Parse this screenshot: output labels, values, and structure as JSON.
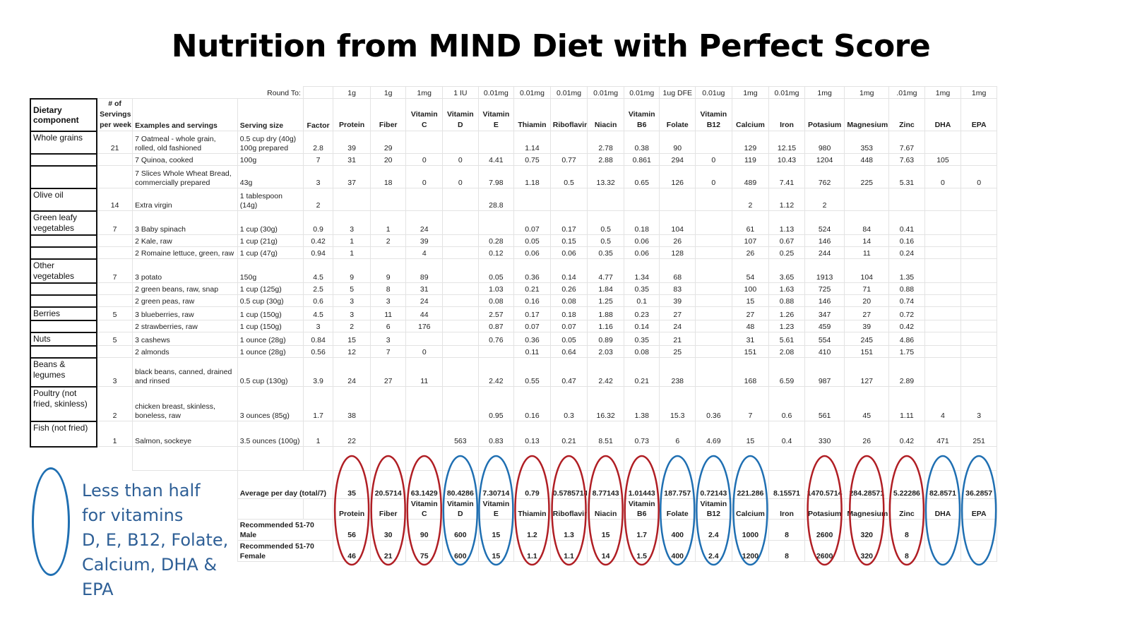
{
  "title": "Nutrition from MIND Diet with Perfect Score",
  "round_to": {
    "label": "Round To:",
    "values": [
      "1g",
      "1g",
      "1mg",
      "1 IU",
      "0.01mg",
      "0.01mg",
      "0.01mg",
      "0.01mg",
      "0.01mg",
      "1ug DFE",
      "0.01ug",
      "1mg",
      "0.01mg",
      "1mg",
      "1mg",
      ".01mg",
      "1mg",
      "1mg"
    ]
  },
  "headers": {
    "component": "Dietary component",
    "servings_top": "# of",
    "servings_mid": "Servings",
    "servings_bottom": "per week",
    "examples": "Examples and servings",
    "serving_size": "Serving size",
    "factor": "Factor",
    "nutrients": [
      {
        "top": "",
        "bottom": "Protein"
      },
      {
        "top": "",
        "bottom": "Fiber"
      },
      {
        "top": "Vitamin",
        "bottom": "C"
      },
      {
        "top": "Vitamin",
        "bottom": "D"
      },
      {
        "top": "Vitamin",
        "bottom": "E"
      },
      {
        "top": "",
        "bottom": "Thiamin"
      },
      {
        "top": "",
        "bottom": "Riboflavin"
      },
      {
        "top": "",
        "bottom": "Niacin"
      },
      {
        "top": "Vitamin",
        "bottom": "B6"
      },
      {
        "top": "",
        "bottom": "Folate"
      },
      {
        "top": "Vitamin",
        "bottom": "B12"
      },
      {
        "top": "",
        "bottom": "Calcium"
      },
      {
        "top": "",
        "bottom": "Iron"
      },
      {
        "top": "",
        "bottom": "Potasium"
      },
      {
        "top": "",
        "bottom": "Magnesium"
      },
      {
        "top": "",
        "bottom": "Zinc"
      },
      {
        "top": "",
        "bottom": "DHA"
      },
      {
        "top": "",
        "bottom": "EPA"
      }
    ]
  },
  "rows": [
    {
      "component": "Whole grains",
      "servings": "21",
      "example": "7 Oatmeal - whole grain, rolled, old fashioned",
      "size": "0.5 cup dry (40g) 100g prepared",
      "factor": "2.8",
      "values": [
        "39",
        "29",
        "",
        "",
        "",
        "1.14",
        "",
        "2.78",
        "0.38",
        "90",
        "",
        "129",
        "12.15",
        "980",
        "353",
        "7.67",
        "",
        ""
      ]
    },
    {
      "component": "",
      "servings": "",
      "example": "7 Quinoa, cooked",
      "size": "100g",
      "factor": "7",
      "values": [
        "31",
        "20",
        "0",
        "0",
        "4.41",
        "0.75",
        "0.77",
        "2.88",
        "0.861",
        "294",
        "0",
        "119",
        "10.43",
        "1204",
        "448",
        "7.63",
        "105",
        ""
      ]
    },
    {
      "component": "",
      "servings": "",
      "example": "7 Slices Whole Wheat Bread, commercially prepared",
      "size": "43g",
      "factor": "3",
      "values": [
        "37",
        "18",
        "0",
        "0",
        "7.98",
        "1.18",
        "0.5",
        "13.32",
        "0.65",
        "126",
        "0",
        "489",
        "7.41",
        "762",
        "225",
        "5.31",
        "0",
        "0"
      ]
    },
    {
      "component": "Olive oil",
      "servings": "14",
      "example": "Extra virgin",
      "size": "1 tablespoon (14g)",
      "factor": "2",
      "values": [
        "",
        "",
        "",
        "",
        "28.8",
        "",
        "",
        "",
        "",
        "",
        "",
        "2",
        "1.12",
        "2",
        "",
        "",
        "",
        ""
      ]
    },
    {
      "component": "Green leafy vegetables",
      "servings": "7",
      "example": "3 Baby spinach",
      "size": "1 cup (30g)",
      "factor": "0.9",
      "values": [
        "3",
        "1",
        "24",
        "",
        "",
        "0.07",
        "0.17",
        "0.5",
        "0.18",
        "104",
        "",
        "61",
        "1.13",
        "524",
        "84",
        "0.41",
        "",
        ""
      ]
    },
    {
      "component": "",
      "servings": "",
      "example": "2 Kale, raw",
      "size": "1 cup (21g)",
      "factor": "0.42",
      "values": [
        "1",
        "2",
        "39",
        "",
        "0.28",
        "0.05",
        "0.15",
        "0.5",
        "0.06",
        "26",
        "",
        "107",
        "0.67",
        "146",
        "14",
        "0.16",
        "",
        ""
      ]
    },
    {
      "component": "",
      "servings": "",
      "example": "2 Romaine lettuce, green, raw",
      "size": "1 cup (47g)",
      "factor": "0.94",
      "values": [
        "1",
        "",
        "4",
        "",
        "0.12",
        "0.06",
        "0.06",
        "0.35",
        "0.06",
        "128",
        "",
        "26",
        "0.25",
        "244",
        "11",
        "0.24",
        "",
        ""
      ]
    },
    {
      "component": "Other vegetables",
      "servings": "7",
      "example": "3 potato",
      "size": "150g",
      "factor": "4.5",
      "values": [
        "9",
        "9",
        "89",
        "",
        "0.05",
        "0.36",
        "0.14",
        "4.77",
        "1.34",
        "68",
        "",
        "54",
        "3.65",
        "1913",
        "104",
        "1.35",
        "",
        ""
      ]
    },
    {
      "component": "",
      "servings": "",
      "example": "2 green beans, raw, snap",
      "size": "1 cup (125g)",
      "factor": "2.5",
      "values": [
        "5",
        "8",
        "31",
        "",
        "1.03",
        "0.21",
        "0.26",
        "1.84",
        "0.35",
        "83",
        "",
        "100",
        "1.63",
        "725",
        "71",
        "0.88",
        "",
        ""
      ]
    },
    {
      "component": "",
      "servings": "",
      "example": "2 green peas, raw",
      "size": "0.5 cup (30g)",
      "factor": "0.6",
      "values": [
        "3",
        "3",
        "24",
        "",
        "0.08",
        "0.16",
        "0.08",
        "1.25",
        "0.1",
        "39",
        "",
        "15",
        "0.88",
        "146",
        "20",
        "0.74",
        "",
        ""
      ]
    },
    {
      "component": "Berries",
      "servings": "5",
      "example": "3 blueberries, raw",
      "size": "1 cup (150g)",
      "factor": "4.5",
      "values": [
        "3",
        "11",
        "44",
        "",
        "2.57",
        "0.17",
        "0.18",
        "1.88",
        "0.23",
        "27",
        "",
        "27",
        "1.26",
        "347",
        "27",
        "0.72",
        "",
        ""
      ]
    },
    {
      "component": "",
      "servings": "",
      "example": "2 strawberries, raw",
      "size": "1 cup (150g)",
      "factor": "3",
      "values": [
        "2",
        "6",
        "176",
        "",
        "0.87",
        "0.07",
        "0.07",
        "1.16",
        "0.14",
        "24",
        "",
        "48",
        "1.23",
        "459",
        "39",
        "0.42",
        "",
        ""
      ]
    },
    {
      "component": "Nuts",
      "servings": "5",
      "example": "3 cashews",
      "size": "1 ounce (28g)",
      "factor": "0.84",
      "values": [
        "15",
        "3",
        "",
        "",
        "0.76",
        "0.36",
        "0.05",
        "0.89",
        "0.35",
        "21",
        "",
        "31",
        "5.61",
        "554",
        "245",
        "4.86",
        "",
        ""
      ]
    },
    {
      "component": "",
      "servings": "",
      "example": "2 almonds",
      "size": "1 ounce (28g)",
      "factor": "0.56",
      "values": [
        "12",
        "7",
        "0",
        "",
        "",
        "0.11",
        "0.64",
        "2.03",
        "0.08",
        "25",
        "",
        "151",
        "2.08",
        "410",
        "151",
        "1.75",
        "",
        ""
      ]
    },
    {
      "component": "Beans & legumes",
      "servings": "3",
      "example": "black beans, canned, drained and rinsed",
      "size": "0.5 cup (130g)",
      "factor": "3.9",
      "values": [
        "24",
        "27",
        "11",
        "",
        "2.42",
        "0.55",
        "0.47",
        "2.42",
        "0.21",
        "238",
        "",
        "168",
        "6.59",
        "987",
        "127",
        "2.89",
        "",
        ""
      ]
    },
    {
      "component": "Poultry (not fried, skinless)",
      "servings": "2",
      "example": "chicken breast, skinless, boneless, raw",
      "size": "3 ounces (85g)",
      "factor": "1.7",
      "values": [
        "38",
        "",
        "",
        "",
        "0.95",
        "0.16",
        "0.3",
        "16.32",
        "1.38",
        "15.3",
        "0.36",
        "7",
        "0.6",
        "561",
        "45",
        "1.11",
        "4",
        "3"
      ]
    },
    {
      "component": "Fish (not fried)",
      "servings": "1",
      "example": "Salmon, sockeye",
      "size": "3.5 ounces (100g)",
      "factor": "1",
      "values": [
        "22",
        "",
        "",
        "563",
        "0.83",
        "0.13",
        "0.21",
        "8.51",
        "0.73",
        "6",
        "4.69",
        "15",
        "0.4",
        "330",
        "26",
        "0.42",
        "471",
        "251"
      ]
    }
  ],
  "summary": {
    "avg_label": "Average per day (total/7)",
    "avg_values": [
      "35",
      "20.5714",
      "63.1429",
      "80.4286",
      "7.30714",
      "0.79",
      "0.5785714",
      "8.77143",
      "1.01443",
      "187.757",
      "0.72143",
      "221.286",
      "8.15571",
      "1470.5714",
      "284.28571",
      "5.22286",
      "82.8571",
      "36.2857"
    ],
    "male_label": "Recommended 51-70 Male",
    "male_values": [
      "56",
      "30",
      "90",
      "600",
      "15",
      "1.2",
      "1.3",
      "15",
      "1.7",
      "400",
      "2.4",
      "1000",
      "8",
      "2600",
      "320",
      "8",
      "",
      ""
    ],
    "female_label": "Recommended 51-70 Female",
    "female_values": [
      "46",
      "21",
      "75",
      "600",
      "15",
      "1.1",
      "1.1",
      "14",
      "1.5",
      "400",
      "2.4",
      "1200",
      "8",
      "2600",
      "320",
      "8",
      "",
      ""
    ]
  },
  "oval_colors": [
    "red",
    "red",
    "red",
    "blue",
    "blue",
    "red",
    "red",
    "red",
    "red",
    "blue",
    "blue",
    "blue",
    "none",
    "red",
    "red",
    "red",
    "blue",
    "blue"
  ],
  "colors": {
    "red": "#b01e24",
    "blue": "#1f6fb2",
    "legend_text": "#2e5f96"
  },
  "legend": {
    "line1": "Less than half",
    "line2": "for vitamins",
    "line3": "D, E, B12, Folate,",
    "line4": "Calcium, DHA & EPA"
  }
}
